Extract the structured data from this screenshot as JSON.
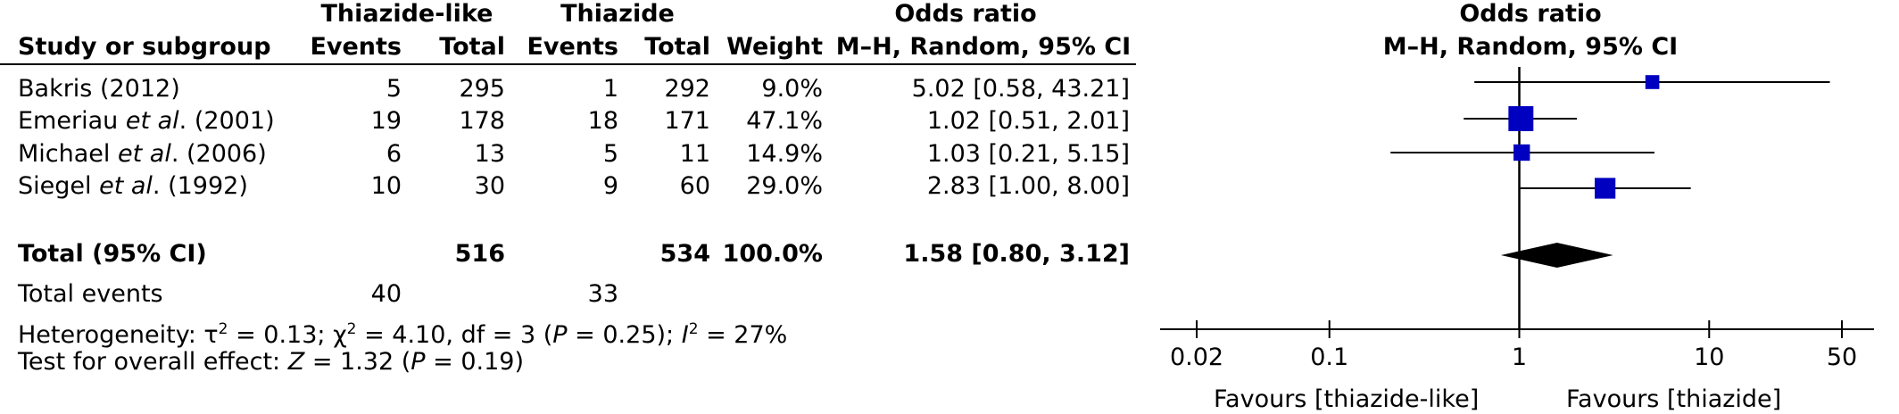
{
  "header": {
    "group_experimental": "Thiazide-like",
    "group_control": "Thiazide",
    "col_study": "Study or subgroup",
    "col_events": "Events",
    "col_total": "Total",
    "col_weight": "Weight",
    "col_or_title": "Odds ratio",
    "col_or_method": "M–H, Random, 95% CI",
    "plot_title": "Odds ratio",
    "plot_method": "M–H, Random, 95% CI"
  },
  "studies": [
    {
      "name": "Bakris (2012)",
      "exp_events": "5",
      "exp_total": "295",
      "ctl_events": "1",
      "ctl_total": "292",
      "weight": "9.0%",
      "ci_text": "5.02 [0.58, 43.21]"
    },
    {
      "name": "Emeriau et al. (2001)",
      "exp_events": "19",
      "exp_total": "178",
      "ctl_events": "18",
      "ctl_total": "171",
      "weight": "47.1%",
      "ci_text": "1.02 [0.51, 2.01]"
    },
    {
      "name": "Michael et al. (2006)",
      "exp_events": "6",
      "exp_total": "13",
      "ctl_events": "5",
      "ctl_total": "11",
      "weight": "14.9%",
      "ci_text": "1.03 [0.21, 5.15]"
    },
    {
      "name": "Siegel et al. (1992)",
      "exp_events": "10",
      "exp_total": "30",
      "ctl_events": "9",
      "ctl_total": "60",
      "weight": "29.0%",
      "ci_text": "2.83 [1.00, 8.00]"
    }
  ],
  "total": {
    "label": "Total (95% CI)",
    "exp_total": "516",
    "ctl_total": "534",
    "weight": "100.0%",
    "ci_text": "1.58 [0.80, 3.12]"
  },
  "total_events": {
    "label": "Total events",
    "exp": "40",
    "ctl": "33"
  },
  "heterogeneity": "Heterogeneity: τ² = 0.13; χ² = 4.10, df = 3 (P = 0.25); I² = 27%",
  "overall_effect": "Test for overall effect: Z = 1.32 (P = 0.19)",
  "axis": {
    "ticks": [
      0.02,
      0.1,
      1,
      10,
      50
    ],
    "tick_labels": [
      "0.02",
      "0.1",
      "1",
      "10",
      "50"
    ],
    "favours_left": "Favours [thiazide-like]",
    "favours_right": "Favours [thiazide]"
  },
  "colors": {
    "marker": "#0000c0",
    "diamond": "#000000",
    "line": "#000000"
  },
  "chart_data": {
    "type": "scatter",
    "scale": "log",
    "xlim": [
      0.02,
      50
    ],
    "reference": 1,
    "studies": [
      {
        "name": "Bakris (2012)",
        "or": 5.02,
        "lo": 0.58,
        "hi": 43.21,
        "weight": 9.0
      },
      {
        "name": "Emeriau et al. (2001)",
        "or": 1.02,
        "lo": 0.51,
        "hi": 2.01,
        "weight": 47.1
      },
      {
        "name": "Michael et al. (2006)",
        "or": 1.03,
        "lo": 0.21,
        "hi": 5.15,
        "weight": 14.9
      },
      {
        "name": "Siegel et al. (1992)",
        "or": 2.83,
        "lo": 1.0,
        "hi": 8.0,
        "weight": 29.0
      }
    ],
    "pooled": {
      "or": 1.58,
      "lo": 0.8,
      "hi": 3.12
    }
  }
}
